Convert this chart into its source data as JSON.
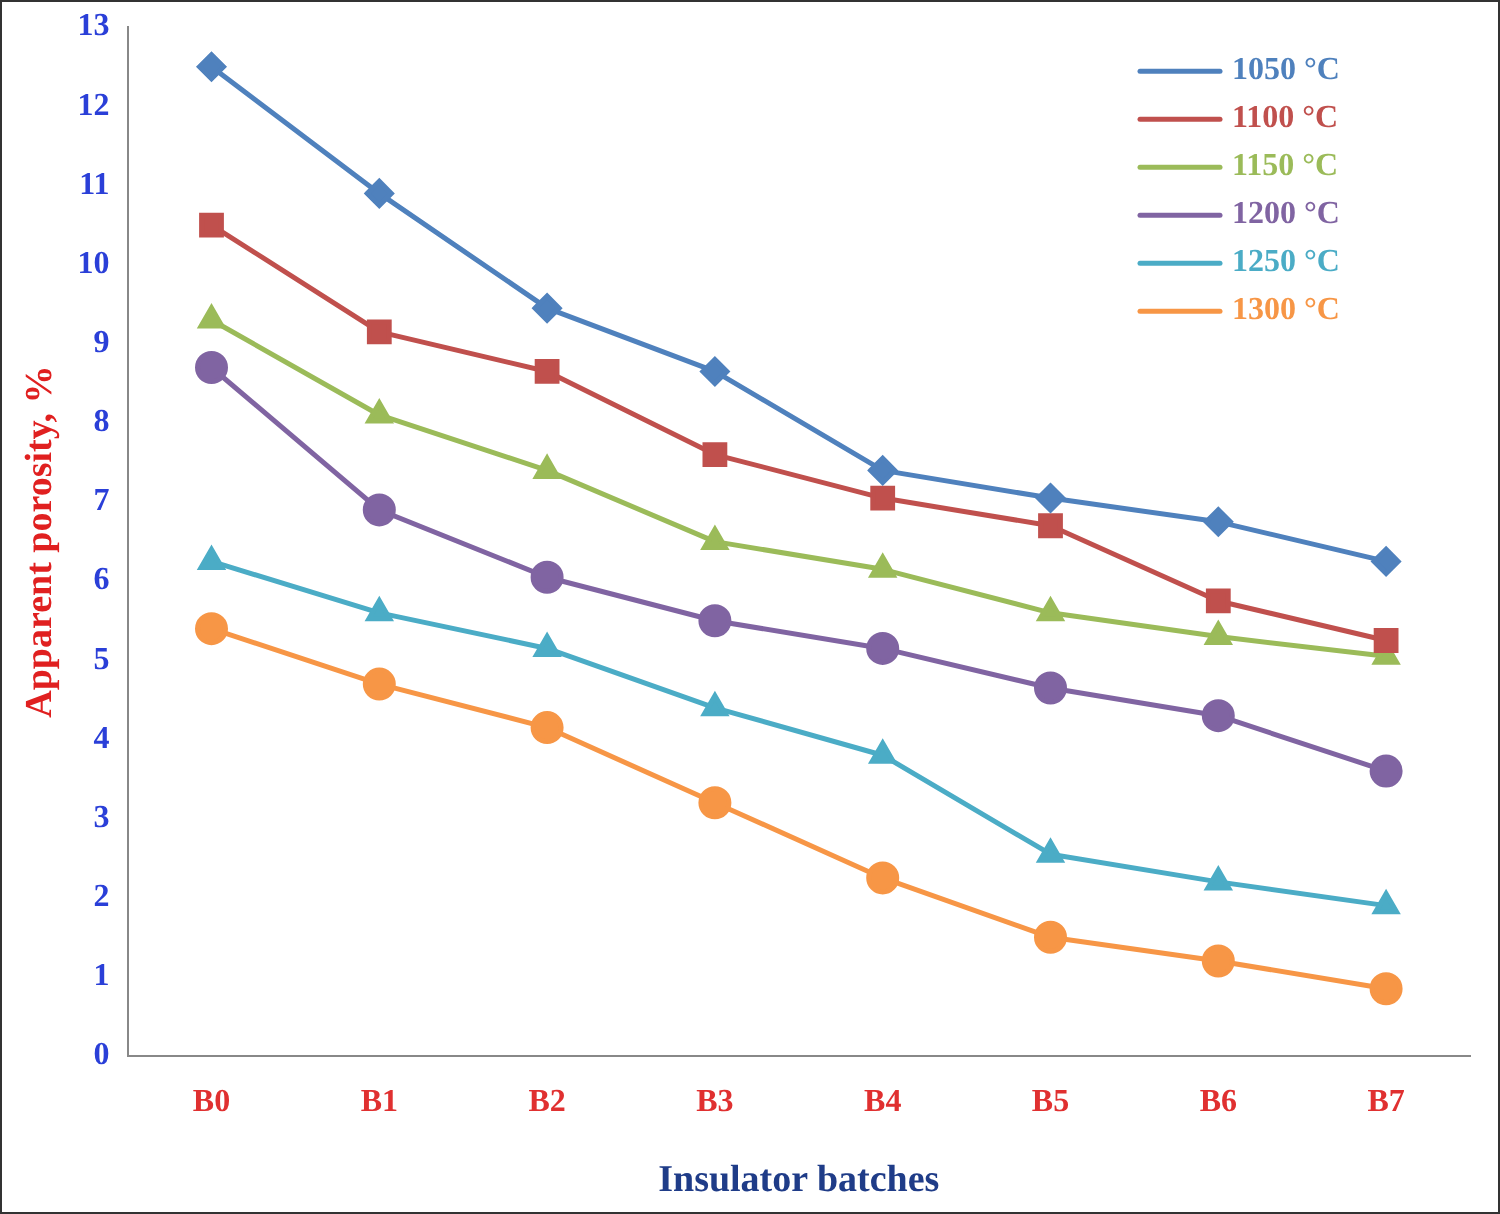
{
  "chart_data": {
    "type": "line",
    "xlabel": "Insulator batches",
    "ylabel": "Apparent porosity, %",
    "categories": [
      "B0",
      "B1",
      "B2",
      "B3",
      "B4",
      "B5",
      "B6",
      "B7"
    ],
    "ylim": [
      0,
      13
    ],
    "yticks": [
      0,
      1,
      2,
      3,
      4,
      5,
      6,
      7,
      8,
      9,
      10,
      11,
      12,
      13
    ],
    "grid": false,
    "legend": "top right",
    "series": [
      {
        "name": "1050 °C",
        "color": "#4f81bd",
        "marker": "diamond",
        "values": [
          12.5,
          10.9,
          9.45,
          8.65,
          7.4,
          7.05,
          6.75,
          6.25
        ]
      },
      {
        "name": "1100 °C",
        "color": "#c0504d",
        "marker": "square",
        "values": [
          10.5,
          9.15,
          8.65,
          7.6,
          7.05,
          6.7,
          5.75,
          5.25
        ]
      },
      {
        "name": "1150 °C",
        "color": "#9bbb59",
        "marker": "triangle",
        "values": [
          9.3,
          8.1,
          7.4,
          6.5,
          6.15,
          5.6,
          5.3,
          5.05
        ]
      },
      {
        "name": "1200 °C",
        "color": "#8064a2",
        "marker": "circle",
        "values": [
          8.7,
          6.9,
          6.05,
          5.5,
          5.15,
          4.65,
          4.3,
          3.6
        ]
      },
      {
        "name": "1250 °C",
        "color": "#4bacc6",
        "marker": "triangle",
        "values": [
          6.25,
          5.6,
          5.15,
          4.4,
          3.8,
          2.55,
          2.2,
          1.9
        ]
      },
      {
        "name": "1300 °C",
        "color": "#f79646",
        "marker": "circle",
        "values": [
          5.4,
          4.7,
          4.15,
          3.2,
          2.25,
          1.5,
          1.2,
          0.85
        ]
      }
    ]
  }
}
